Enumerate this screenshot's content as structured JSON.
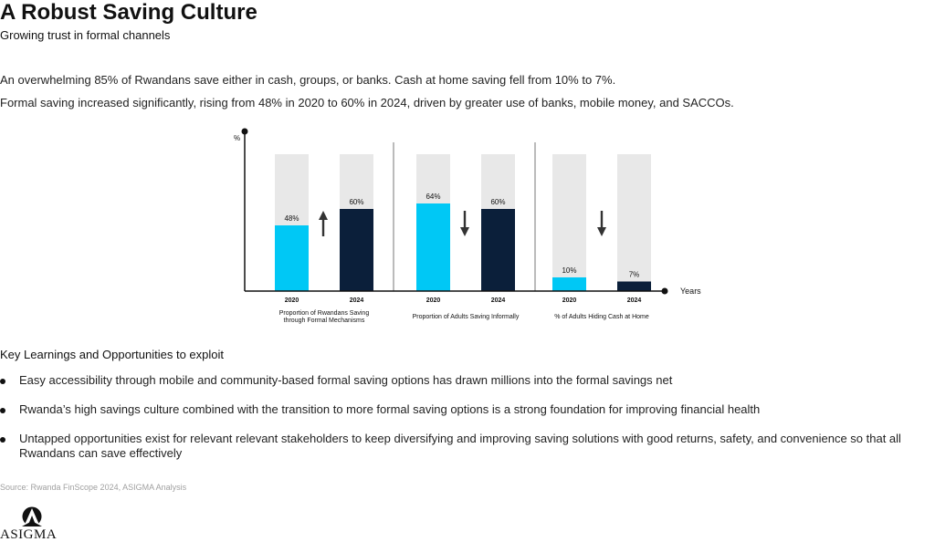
{
  "header": {
    "title": "A Robust Saving Culture",
    "subtitle": "Growing trust in formal channels"
  },
  "intro": {
    "p1": "An overwhelming 85% of Rwandans save either in cash, groups, or banks. Cash at home saving fell from 10% to 7%.",
    "p2": "Formal saving increased significantly, rising from 48% in 2020 to 60% in 2024, driven by greater use of banks, mobile money, and SACCOs."
  },
  "chart_data": {
    "type": "bar",
    "ylabel": "%",
    "xlabel": "Years",
    "ylim": [
      0,
      100
    ],
    "colors": {
      "2020": "#00c8f5",
      "2024": "#0b1f3a",
      "background_bar": "#e8e8e8",
      "axis": "#111111"
    },
    "groups": [
      {
        "label": "Proportion of Rwandans Saving through Formal Mechanisms",
        "label_lines": [
          "Proportion of Rwandans Saving",
          "through Formal Mechanisms"
        ],
        "trend": "up",
        "bars": [
          {
            "year": "2020",
            "value": 48,
            "label": "48%"
          },
          {
            "year": "2024",
            "value": 60,
            "label": "60%"
          }
        ]
      },
      {
        "label": "Proportion of Adults Saving Informally",
        "label_lines": [
          "Proportion of Adults Saving Informally"
        ],
        "trend": "down",
        "bars": [
          {
            "year": "2020",
            "value": 64,
            "label": "64%"
          },
          {
            "year": "2024",
            "value": 60,
            "label": "60%"
          }
        ]
      },
      {
        "label": "% of Adults Hiding Cash at Home",
        "label_lines": [
          "% of Adults Hiding Cash at Home"
        ],
        "trend": "down",
        "bars": [
          {
            "year": "2020",
            "value": 10,
            "label": "10%"
          },
          {
            "year": "2024",
            "value": 7,
            "label": "7%"
          }
        ]
      }
    ]
  },
  "learnings": {
    "heading": "Key Learnings and Opportunities to exploit",
    "items": [
      "Easy accessibility through mobile and community-based formal saving options has drawn millions into the formal savings net",
      "Rwanda’s high savings culture combined with the transition to more formal saving options is a strong foundation for improving financial health",
      "Untapped opportunities exist for relevant relevant stakeholders to keep diversifying and improving saving solutions with good returns, safety, and convenience so that all Rwandans can save effectively"
    ]
  },
  "footer": {
    "source": "Source: Rwanda FinScope 2024, ASIGMA Analysis",
    "logo_text": "ASIGMA"
  }
}
